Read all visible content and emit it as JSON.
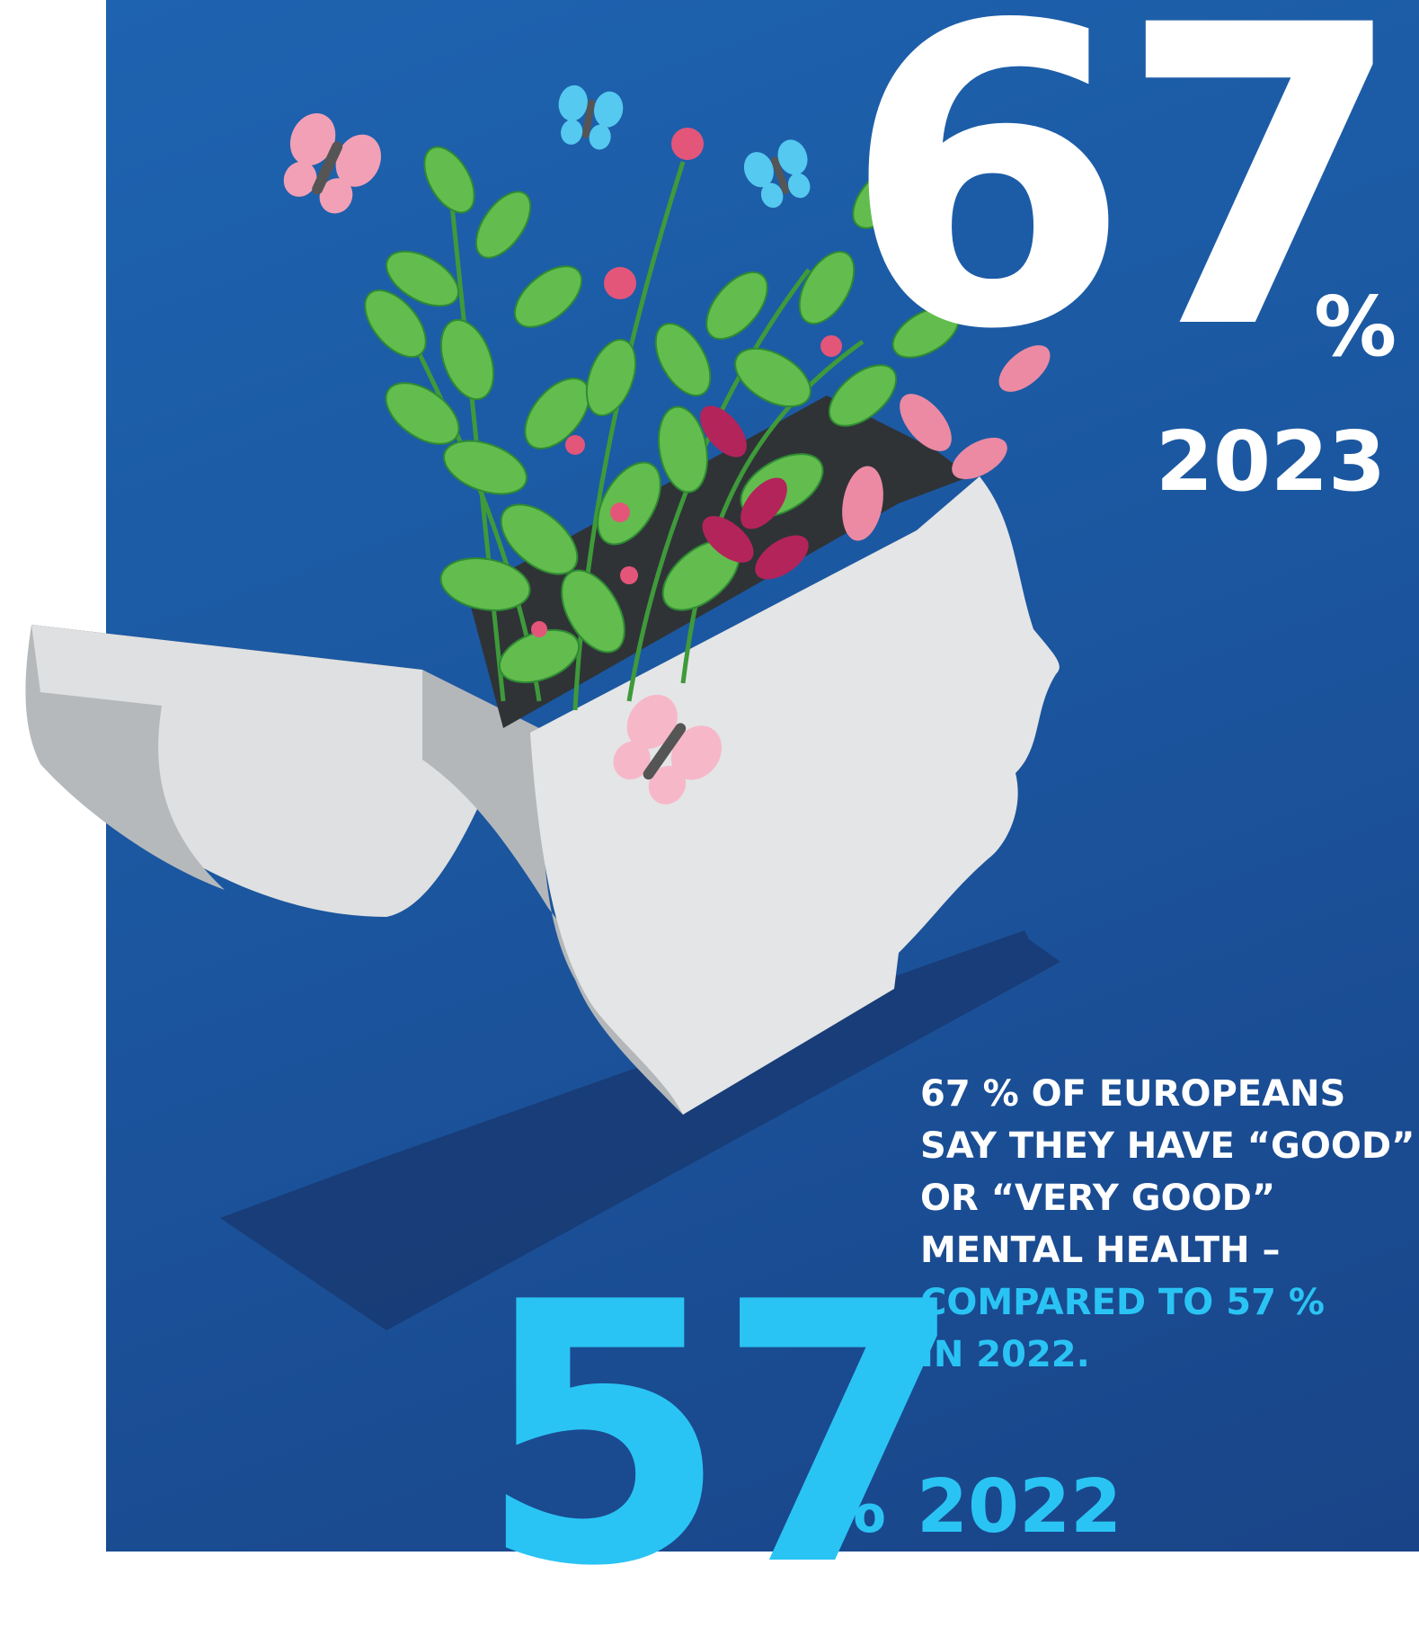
{
  "headline_2023": {
    "value": "67",
    "unit": "%",
    "year": "2023"
  },
  "headline_2022": {
    "value": "57",
    "unit": "%",
    "year": "2022"
  },
  "caption": {
    "line1": "67 % OF EUROPEANS",
    "line2": "SAY THEY HAVE “GOOD”",
    "line3": "OR “VERY GOOD”",
    "line4": "MENTAL HEALTH –",
    "line5": "COMPARED TO 57 %",
    "line6": "IN 2022."
  },
  "colors": {
    "background_blue": "#1b57a0",
    "accent_cyan": "#2ac4f4",
    "text_white": "#ffffff",
    "head_grey": "#e4e5e6",
    "leaf_green": "#5cb94a",
    "flower_pink": "#e4557a"
  },
  "illustration": {
    "subject": "open-head-planter-icon",
    "decorations": [
      "butterfly-icon",
      "leaf-icon",
      "flower-icon"
    ]
  }
}
